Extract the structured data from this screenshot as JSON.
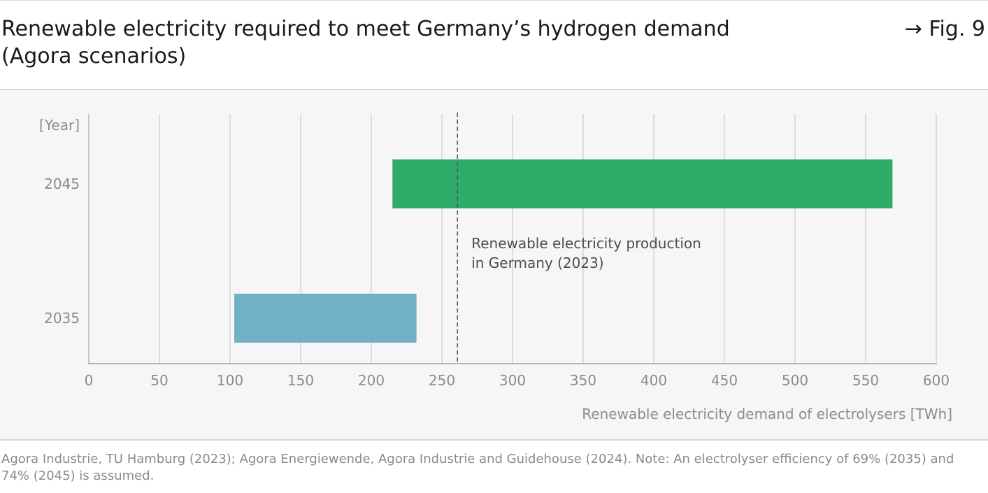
{
  "header": {
    "title": "Renewable electricity required to meet Germany’s hydrogen demand (Agora scenarios)",
    "fig_ref": "→ Fig. 9"
  },
  "chart_data": {
    "type": "bar",
    "orientation": "horizontal",
    "title": "Renewable electricity required to meet Germany’s hydrogen demand (Agora scenarios)",
    "xlabel": "Renewable electricity demand of electrolysers [TWh]",
    "ylabel": "[Year]",
    "xlim": [
      0,
      600
    ],
    "xticks": [
      "0",
      "50",
      "100",
      "150",
      "200",
      "250",
      "300",
      "350",
      "400",
      "450",
      "500",
      "550",
      "600"
    ],
    "categories": [
      "2045",
      "2035"
    ],
    "ranges": [
      {
        "category": "2045",
        "start": 215,
        "end": 569,
        "color": "#2eab69"
      },
      {
        "category": "2035",
        "start": 103,
        "end": 232,
        "color": "#72b0c8"
      }
    ],
    "reference_line": {
      "value": 261,
      "label_lines": [
        "Renewable electricity production",
        "in Germany (2023)"
      ],
      "style": "dashed"
    },
    "grid": "vertical",
    "legend": "none"
  },
  "source": {
    "text": "Agora Industrie, TU Hamburg (2023); Agora Energiewende, Agora Industrie and Guidehouse (2024). Note: An electrolyser efficiency of 69% (2035) and 74% (2045) is assumed."
  }
}
